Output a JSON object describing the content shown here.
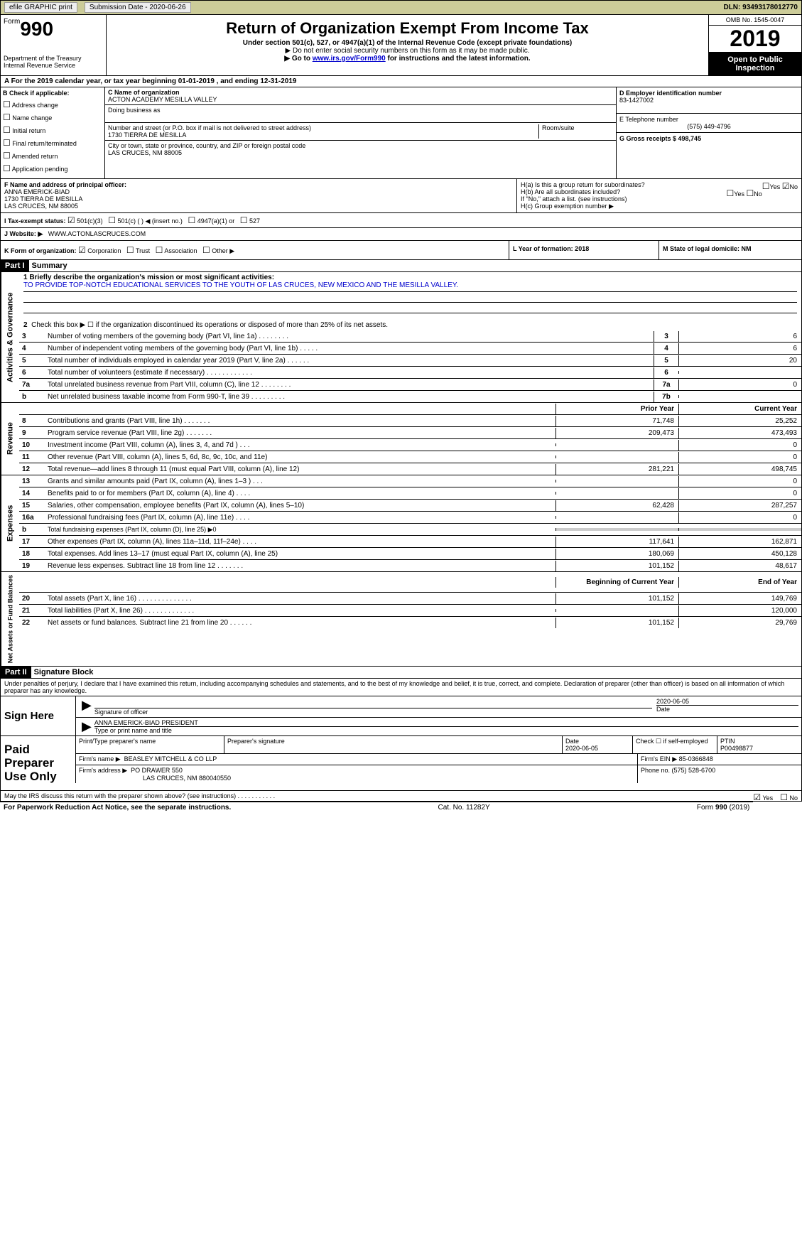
{
  "top": {
    "efile": "efile GRAPHIC print",
    "sub_label": "Submission Date - 2020-06-26",
    "dln": "DLN: 93493178012770"
  },
  "header": {
    "form_prefix": "Form",
    "form_no": "990",
    "dept1": "Department of the Treasury",
    "dept2": "Internal Revenue Service",
    "title": "Return of Organization Exempt From Income Tax",
    "subtitle": "Under section 501(c), 527, or 4947(a)(1) of the Internal Revenue Code (except private foundations)",
    "note1": "▶ Do not enter social security numbers on this form as it may be made public.",
    "note2_pre": "▶ Go to ",
    "note2_link": "www.irs.gov/Form990",
    "note2_post": " for instructions and the latest information.",
    "omb": "OMB No. 1545-0047",
    "year": "2019",
    "open": "Open to Public Inspection"
  },
  "line_a": "A   For the 2019 calendar year, or tax year beginning 01-01-2019      , and ending 12-31-2019",
  "b": {
    "label": "B Check if applicable:",
    "opts": [
      "Address change",
      "Name change",
      "Initial return",
      "Final return/terminated",
      "Amended return",
      "Application pending"
    ]
  },
  "c": {
    "name_label": "C Name of organization",
    "name": "ACTON ACADEMY MESILLA VALLEY",
    "dba_label": "Doing business as",
    "addr_label": "Number and street (or P.O. box if mail is not delivered to street address)",
    "addr": "1730 TIERRA DE MESILLA",
    "room_label": "Room/suite",
    "city_label": "City or town, state or province, country, and ZIP or foreign postal code",
    "city": "LAS CRUCES, NM  88005"
  },
  "d": {
    "ein_label": "D Employer identification number",
    "ein": "83-1427002",
    "phone_label": "E Telephone number",
    "phone": "(575) 449-4796",
    "gross_label": "G Gross receipts $ 498,745"
  },
  "f": {
    "label": "F Name and address of principal officer:",
    "name": "ANNA EMERICK-BIAD",
    "addr1": "1730 TIERRA DE MESILLA",
    "addr2": "LAS CRUCES, NM  88005"
  },
  "h": {
    "a_label": "H(a)   Is this a group return for subordinates?",
    "a_yes": "Yes",
    "a_no": "No",
    "b_label": "H(b)   Are all subordinates included?",
    "b_note": "If \"No,\" attach a list. (see instructions)",
    "c_label": "H(c)   Group exemption number ▶"
  },
  "i": {
    "label": "I     Tax-exempt status:",
    "opts": [
      "501(c)(3)",
      "501(c) (   ) ◀ (insert no.)",
      "4947(a)(1) or",
      "527"
    ]
  },
  "j": {
    "label": "J    Website: ▶",
    "val": "WWW.ACTONLASCRUCES.COM"
  },
  "k": {
    "label": "K Form of organization:",
    "opts": [
      "Corporation",
      "Trust",
      "Association",
      "Other ▶"
    ]
  },
  "l": {
    "label": "L Year of formation: 2018"
  },
  "m": {
    "label": "M State of legal domicile: NM"
  },
  "part1": {
    "header": "Part I",
    "title": "Summary",
    "line1_label": "1  Briefly describe the organization's mission or most significant activities:",
    "mission": "TO PROVIDE TOP-NOTCH EDUCATIONAL SERVICES TO THE YOUTH OF LAS CRUCES, NEW MEXICO AND THE MESILLA VALLEY.",
    "line2": "Check this box ▶ ☐ if the organization discontinued its operations or disposed of more than 25% of its net assets.",
    "lines_gov": [
      {
        "n": "3",
        "d": "Number of voting members of the governing body (Part VI, line 1a)   .    .    .    .    .    .    .    .",
        "b": "3",
        "v": "6"
      },
      {
        "n": "4",
        "d": "Number of independent voting members of the governing body (Part VI, line 1b)  .    .    .    .    .",
        "b": "4",
        "v": "6"
      },
      {
        "n": "5",
        "d": "Total number of individuals employed in calendar year 2019 (Part V, line 2a)  .    .    .    .    .    .",
        "b": "5",
        "v": "20"
      },
      {
        "n": "6",
        "d": "Total number of volunteers (estimate if necessary)  .    .    .    .    .    .    .    .    .    .    .    .",
        "b": "6",
        "v": ""
      },
      {
        "n": "7a",
        "d": "Total unrelated business revenue from Part VIII, column (C), line 12  .    .    .    .    .    .    .    .",
        "b": "7a",
        "v": "0"
      },
      {
        "n": "b",
        "d": "Net unrelated business taxable income from Form 990-T, line 39  .    .    .    .    .    .    .    .    .",
        "b": "7b",
        "v": ""
      }
    ],
    "prior": "Prior Year",
    "current": "Current Year",
    "lines_rev": [
      {
        "n": "8",
        "d": "Contributions and grants (Part VIII, line 1h)  .    .    .    .    .    .    .",
        "p": "71,748",
        "c": "25,252"
      },
      {
        "n": "9",
        "d": "Program service revenue (Part VIII, line 2g)  .    .    .    .    .    .    .",
        "p": "209,473",
        "c": "473,493"
      },
      {
        "n": "10",
        "d": "Investment income (Part VIII, column (A), lines 3, 4, and 7d )  .    .    .",
        "p": "",
        "c": "0"
      },
      {
        "n": "11",
        "d": "Other revenue (Part VIII, column (A), lines 5, 6d, 8c, 9c, 10c, and 11e)",
        "p": "",
        "c": "0"
      },
      {
        "n": "12",
        "d": "Total revenue—add lines 8 through 11 (must equal Part VIII, column (A), line 12)",
        "p": "281,221",
        "c": "498,745"
      }
    ],
    "lines_exp": [
      {
        "n": "13",
        "d": "Grants and similar amounts paid (Part IX, column (A), lines 1–3 )  .    .    .",
        "p": "",
        "c": "0"
      },
      {
        "n": "14",
        "d": "Benefits paid to or for members (Part IX, column (A), line 4)  .    .    .    .",
        "p": "",
        "c": "0"
      },
      {
        "n": "15",
        "d": "Salaries, other compensation, employee benefits (Part IX, column (A), lines 5–10)",
        "p": "62,428",
        "c": "287,257"
      },
      {
        "n": "16a",
        "d": "Professional fundraising fees (Part IX, column (A), line 11e)  .    .    .    .",
        "p": "",
        "c": "0"
      },
      {
        "n": "b",
        "d": "Total fundraising expenses (Part IX, column (D), line 25) ▶0",
        "p": null,
        "c": null
      },
      {
        "n": "17",
        "d": "Other expenses (Part IX, column (A), lines 11a–11d, 11f–24e)  .    .    .    .",
        "p": "117,641",
        "c": "162,871"
      },
      {
        "n": "18",
        "d": "Total expenses. Add lines 13–17 (must equal Part IX, column (A), line 25)",
        "p": "180,069",
        "c": "450,128"
      },
      {
        "n": "19",
        "d": "Revenue less expenses. Subtract line 18 from line 12  .    .    .    .    .    .    .",
        "p": "101,152",
        "c": "48,617"
      }
    ],
    "begin": "Beginning of Current Year",
    "end": "End of Year",
    "lines_net": [
      {
        "n": "20",
        "d": "Total assets (Part X, line 16)  .    .    .    .    .    .    .    .    .    .    .    .    .    .",
        "p": "101,152",
        "c": "149,769"
      },
      {
        "n": "21",
        "d": "Total liabilities (Part X, line 26)  .    .    .    .    .    .    .    .    .    .    .    .    .",
        "p": "",
        "c": "120,000"
      },
      {
        "n": "22",
        "d": "Net assets or fund balances. Subtract line 21 from line 20   .    .    .    .    .    .",
        "p": "101,152",
        "c": "29,769"
      }
    ],
    "side_gov": "Activities & Governance",
    "side_rev": "Revenue",
    "side_exp": "Expenses",
    "side_net": "Net Assets or Fund Balances"
  },
  "part2": {
    "header": "Part II",
    "title": "Signature Block",
    "perjury": "Under penalties of perjury, I declare that I have examined this return, including accompanying schedules and statements, and to the best of my knowledge and belief, it is true, correct, and complete. Declaration of preparer (other than officer) is based on all information of which preparer has any knowledge.",
    "sign_here": "Sign Here",
    "sig_officer": "Signature of officer",
    "sig_date": "2020-06-05",
    "date_label": "Date",
    "name_title": "ANNA EMERICK-BIAD  PRESIDENT",
    "name_title_label": "Type or print name and title",
    "paid_label": "Paid Preparer Use Only",
    "prep_name_label": "Print/Type preparer's name",
    "prep_sig_label": "Preparer's signature",
    "prep_date_label": "Date",
    "prep_date": "2020-06-05",
    "check_label": "Check ☐ if self-employed",
    "ptin_label": "PTIN",
    "ptin": "P00498877",
    "firm_name_label": "Firm's name    ▶",
    "firm_name": "BEASLEY MITCHELL & CO LLP",
    "firm_ein_label": "Firm's EIN ▶",
    "firm_ein": "85-0366848",
    "firm_addr_label": "Firm's address ▶",
    "firm_addr1": "PO DRAWER 550",
    "firm_addr2": "LAS CRUCES, NM  880040550",
    "firm_phone_label": "Phone no. (575) 528-6700",
    "discuss": "May the IRS discuss this return with the preparer shown above? (see instructions)   .    .    .    .    .    .    .    .    .    .    .",
    "yes": "Yes",
    "no": "No"
  },
  "footer": {
    "left": "For Paperwork Reduction Act Notice, see the separate instructions.",
    "mid": "Cat. No. 11282Y",
    "right": "Form 990 (2019)"
  }
}
